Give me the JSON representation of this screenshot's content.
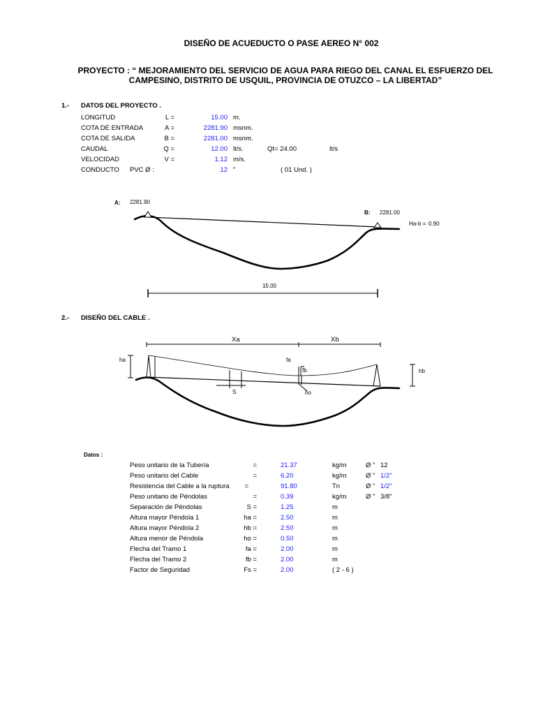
{
  "title": "DISEÑO  DE  ACUEDUCTO O PASE AEREO N° 002",
  "project_line1": "PROYECTO : “ MEJORAMIENTO DEL SERVICIO DE AGUA PARA RIEGO DEL CANAL EL ESFUERZO DEL",
  "project_line2": "CAMPESINO, DISTRITO DE USQUIL, PROVINCIA DE OTUZCO – LA LIBERTAD”",
  "section1": {
    "number": "1.-",
    "heading": "DATOS  DEL PROYECTO .",
    "rows": [
      {
        "label": "LONGITUD",
        "sym": "L =",
        "value": "15.00",
        "unit": "m."
      },
      {
        "label": "COTA DE ENTRADA",
        "sym": "A =",
        "value": "2281.90",
        "unit": "msnm."
      },
      {
        "label": "COTA DE SALIDA",
        "sym": "B =",
        "value": "2281.00",
        "unit": "msnm."
      },
      {
        "label": "CAUDAL",
        "sym": "Q =",
        "value": "12.00",
        "unit": "lt/s.",
        "extra1": "Qt=  24.00",
        "extra2": "lt/s"
      },
      {
        "label": "VELOCIDAD",
        "sym": "V =",
        "value": "1.12",
        "unit": "m/s."
      }
    ],
    "conducto": {
      "label": "CONDUCTO",
      "pvc": "PVC  Ø :",
      "value": "12",
      "unit": "\"",
      "extra": "( 01 Und. )"
    }
  },
  "diagram1": {
    "a_label": "A:",
    "a_value": "2281.90",
    "b_label": "B:",
    "b_value": "2281.00",
    "hab_label": "Ha-b =",
    "hab_value": "0.90",
    "length": "15.00"
  },
  "section2": {
    "number": "2.-",
    "heading": "DISEÑO DEL CABLE ."
  },
  "diagram2": {
    "xa": "Xa",
    "xb": "Xb",
    "ha": "ha",
    "hb": "hb",
    "fa": "fa",
    "fb": "fb",
    "s": "S",
    "ho": "ho"
  },
  "datos": {
    "heading": "Datos :",
    "rows": [
      {
        "label": "Peso unitario de la Tubería",
        "sym": "=",
        "value": "21.37",
        "unit": "kg/m",
        "phi": "Ø \"",
        "size": "12",
        "size_blue": false
      },
      {
        "label": "Peso unitario del Cable",
        "sym": "=",
        "value": "6.20",
        "unit": "kg/m",
        "phi": "Ø \"",
        "size": "1/2\"",
        "size_blue": true
      },
      {
        "label": "Resistencia del Cable a la ruptura",
        "sym": "=",
        "value": "91.80",
        "unit": "Tn",
        "phi": "Ø \"",
        "size": "1/2\"",
        "size_blue": true
      },
      {
        "label": "Peso unitario de Péndolas",
        "sym": "=",
        "value": "0.39",
        "unit": "kg/m",
        "phi": "Ø \"",
        "size": "3/8\"",
        "size_blue": false
      },
      {
        "label": "Separación de Péndolas",
        "sym": "S =",
        "value": "1.25",
        "unit": "m"
      },
      {
        "label": "Altura mayor Péndola 1",
        "sym": "ha =",
        "value": "2.50",
        "unit": "m"
      },
      {
        "label": "Altura mayor Péndola 2",
        "sym": "hb =",
        "value": "2.50",
        "unit": "m"
      },
      {
        "label": "Altura menor de Péndola",
        "sym": "ho =",
        "value": "0.50",
        "unit": "m"
      },
      {
        "label": "Flecha del Tramo 1",
        "sym": "fa =",
        "value": "2.00",
        "unit": "m"
      },
      {
        "label": "Flecha del Tramo 2",
        "sym": "fb =",
        "value": "2.00",
        "unit": "m"
      },
      {
        "label": "Factor de Seguridad",
        "sym": "Fs =",
        "value": "2.00",
        "unit": "( 2 - 6 )"
      }
    ]
  }
}
